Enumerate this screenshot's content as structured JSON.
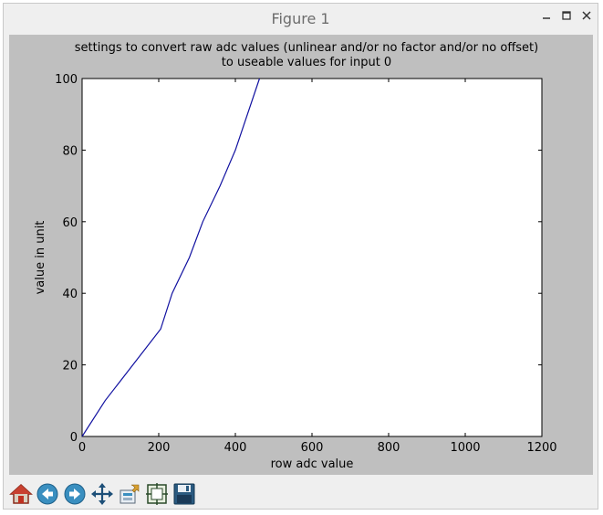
{
  "window": {
    "title": "Figure 1"
  },
  "chart_data": {
    "type": "line",
    "title": "settings to convert raw adc values (unlinear and/or no factor and/or no offset)\nto useable values  for input 0",
    "xlabel": "row adc value",
    "ylabel": "value in unit",
    "xlim": [
      0,
      1200
    ],
    "ylim": [
      0,
      100
    ],
    "xticks": [
      0,
      200,
      400,
      600,
      800,
      1000,
      1200
    ],
    "yticks": [
      0,
      20,
      40,
      60,
      80,
      100
    ],
    "grid": false,
    "series": [
      {
        "color": "#1010a0",
        "x": [
          0,
          60,
          205,
          235,
          280,
          315,
          360,
          400,
          463
        ],
        "y": [
          0,
          10,
          30,
          40,
          50,
          60,
          70,
          80,
          100
        ]
      }
    ]
  }
}
